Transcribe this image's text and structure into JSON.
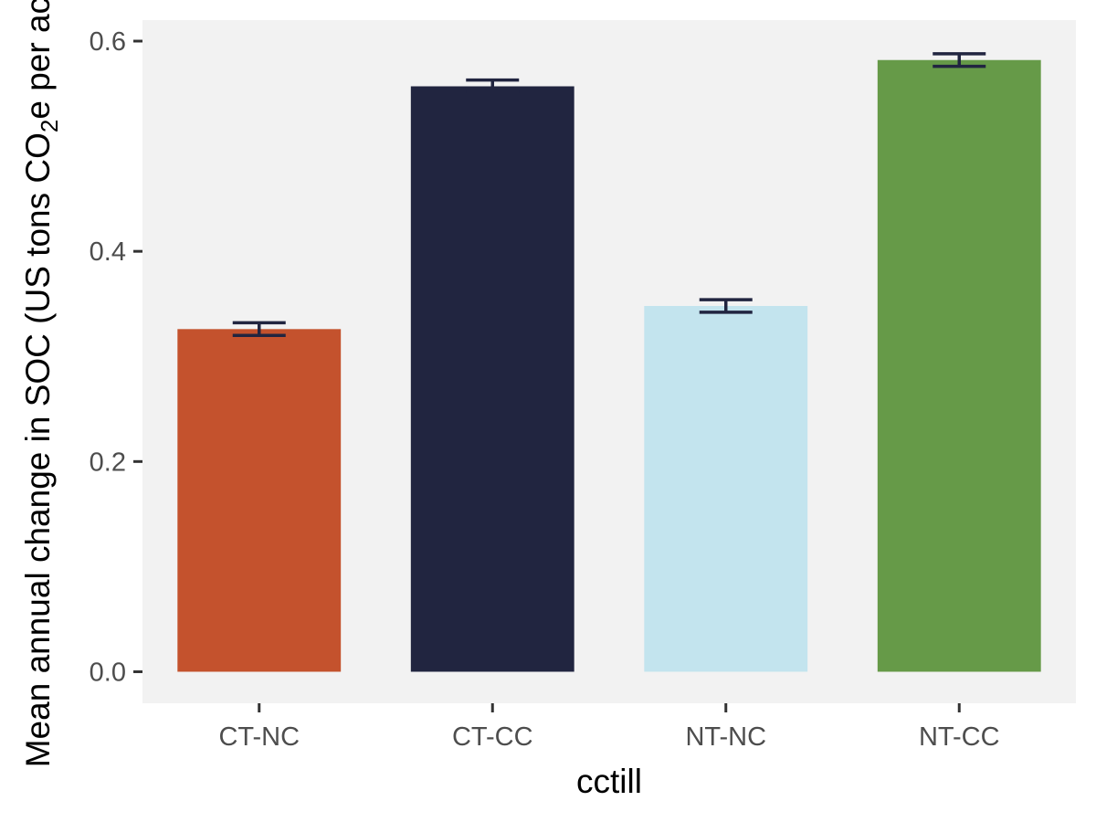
{
  "chart_data": {
    "type": "bar",
    "title": "",
    "xlabel": "cctill",
    "ylabel_parts": {
      "before": "Mean annual change in SOC (US tons CO",
      "subscript": "2",
      "after": "e per acre)"
    },
    "categories": [
      "CT-NC",
      "CT-CC",
      "NT-NC",
      "NT-CC"
    ],
    "values": [
      0.326,
      0.557,
      0.348,
      0.582
    ],
    "error_low": [
      0.32,
      0.552,
      0.342,
      0.576
    ],
    "error_high": [
      0.332,
      0.563,
      0.354,
      0.588
    ],
    "colors": [
      "#C4522D",
      "#212540",
      "#C3E4EE",
      "#669A48"
    ],
    "error_bar_color": "#212540",
    "ylim": [
      -0.03,
      0.62
    ],
    "yticks": [
      0.0,
      0.2,
      0.4,
      0.6
    ],
    "ytick_labels": [
      "0.0",
      "0.2",
      "0.4",
      "0.6"
    ],
    "panel_background": "#F2F2F2",
    "grid": false,
    "legend": "none"
  }
}
